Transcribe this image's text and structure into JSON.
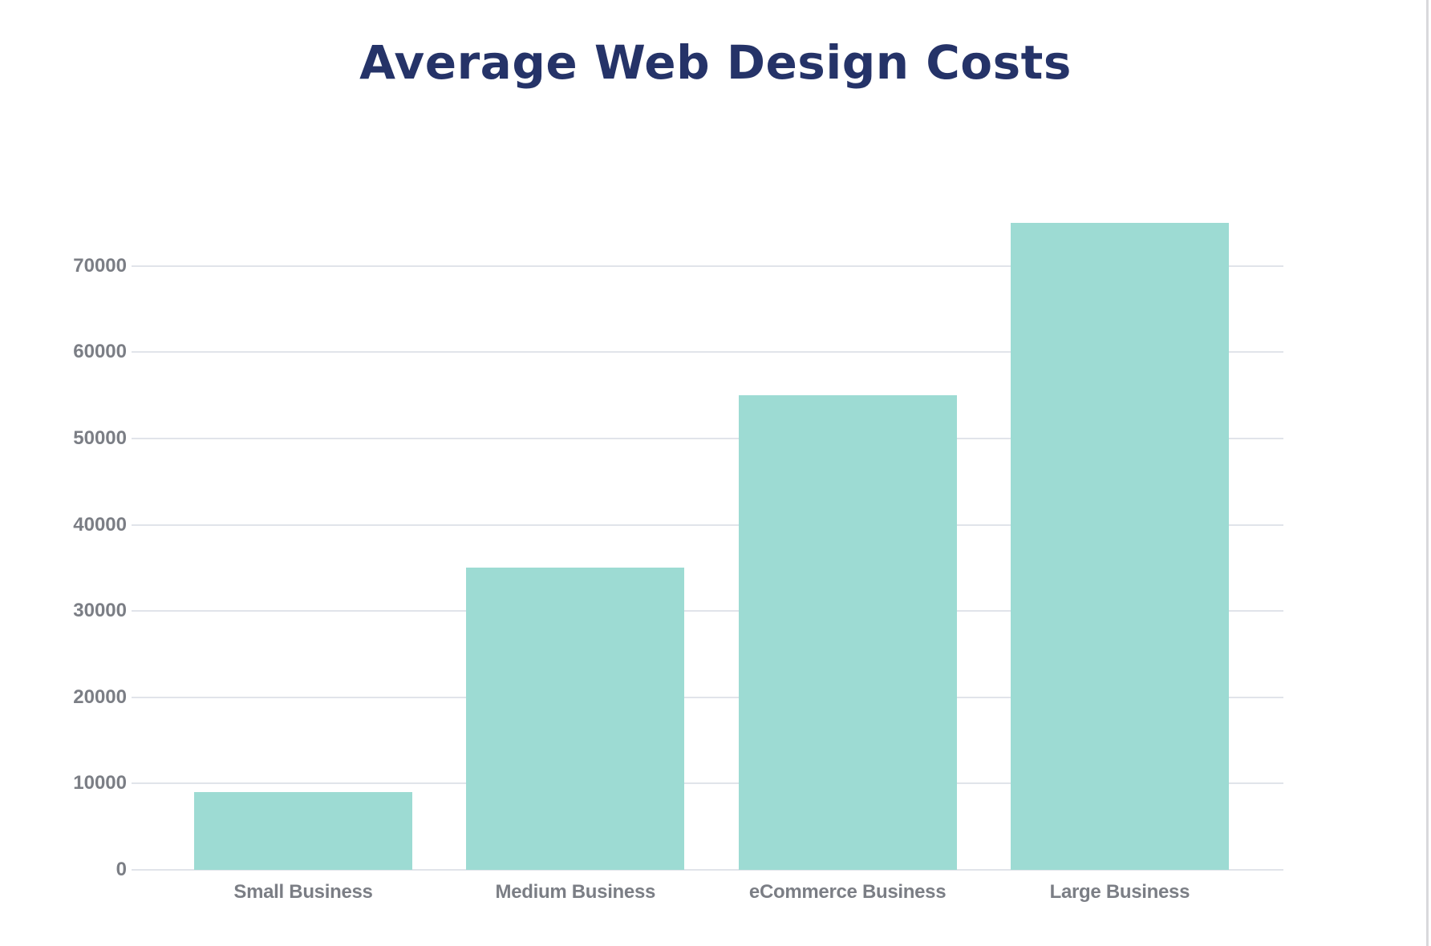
{
  "title": "Average Web Design Costs",
  "colors": {
    "title": "#253368",
    "bar": "#9ddbd3",
    "grid": "#e1e4ea",
    "tick_text": "#7b7e85"
  },
  "y_axis": {
    "ticks": [
      "0",
      "10000",
      "20000",
      "30000",
      "40000",
      "50000",
      "60000",
      "70000"
    ]
  },
  "x_axis": {
    "labels": [
      "Small Business",
      "Medium Business",
      "eCommerce Business",
      "Large Business"
    ]
  },
  "chart_data": {
    "type": "bar",
    "title": "Average Web Design Costs",
    "categories": [
      "Small Business",
      "Medium Business",
      "eCommerce Business",
      "Large Business"
    ],
    "values": [
      9000,
      35000,
      55000,
      75000
    ],
    "xlabel": "",
    "ylabel": "",
    "ylim": [
      0,
      75000
    ],
    "yticks": [
      0,
      10000,
      20000,
      30000,
      40000,
      50000,
      60000,
      70000
    ],
    "grid": true,
    "legend": null
  }
}
